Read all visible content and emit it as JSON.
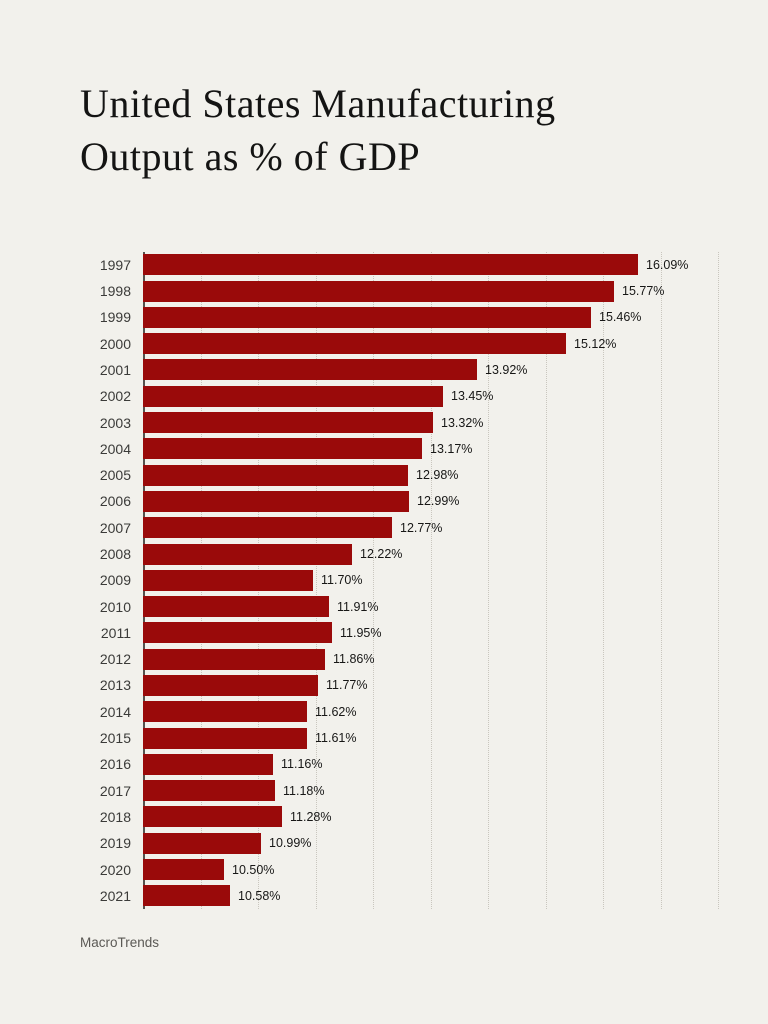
{
  "page": {
    "title_line1": "United States Manufacturing",
    "title_line2": "Output as % of GDP",
    "source": "MacroTrends"
  },
  "colors": {
    "background": "#F2F1EC",
    "bar": "#9A0A0A",
    "axis_line": "#55524E",
    "gridline": "#C9C6BE",
    "title_text": "#141413",
    "year_label_text": "#3B3B39",
    "value_label_text": "#171716",
    "source_text": "#5B5955"
  },
  "chart_data": {
    "type": "bar",
    "orientation": "horizontal",
    "title": "United States Manufacturing Output as % of GDP",
    "xlabel": "",
    "ylabel": "",
    "categories": [
      "1997",
      "1998",
      "1999",
      "2000",
      "2001",
      "2002",
      "2003",
      "2004",
      "2005",
      "2006",
      "2007",
      "2008",
      "2009",
      "2010",
      "2011",
      "2012",
      "2013",
      "2014",
      "2015",
      "2016",
      "2017",
      "2018",
      "2019",
      "2020",
      "2021"
    ],
    "values": [
      16.09,
      15.77,
      15.46,
      15.12,
      13.92,
      13.45,
      13.32,
      13.17,
      12.98,
      12.99,
      12.77,
      12.22,
      11.7,
      11.91,
      11.95,
      11.86,
      11.77,
      11.62,
      11.61,
      11.16,
      11.18,
      11.28,
      10.99,
      10.5,
      10.58
    ],
    "labels": [
      "16.09%",
      "15.77%",
      "15.46%",
      "15.12%",
      "13.92%",
      "13.45%",
      "13.32%",
      "13.17%",
      "12.98%",
      "12.99%",
      "12.77%",
      "12.22%",
      "11.70%",
      "11.91%",
      "11.95%",
      "11.86%",
      "11.77%",
      "11.62%",
      "11.61%",
      "11.16%",
      "11.18%",
      "11.28%",
      "10.99%",
      "10.50%",
      "10.58%"
    ],
    "xlim": [
      9.4,
      17.2
    ],
    "grid": "vertical dotted lines, unlabeled",
    "legend": "none",
    "source": "MacroTrends"
  }
}
